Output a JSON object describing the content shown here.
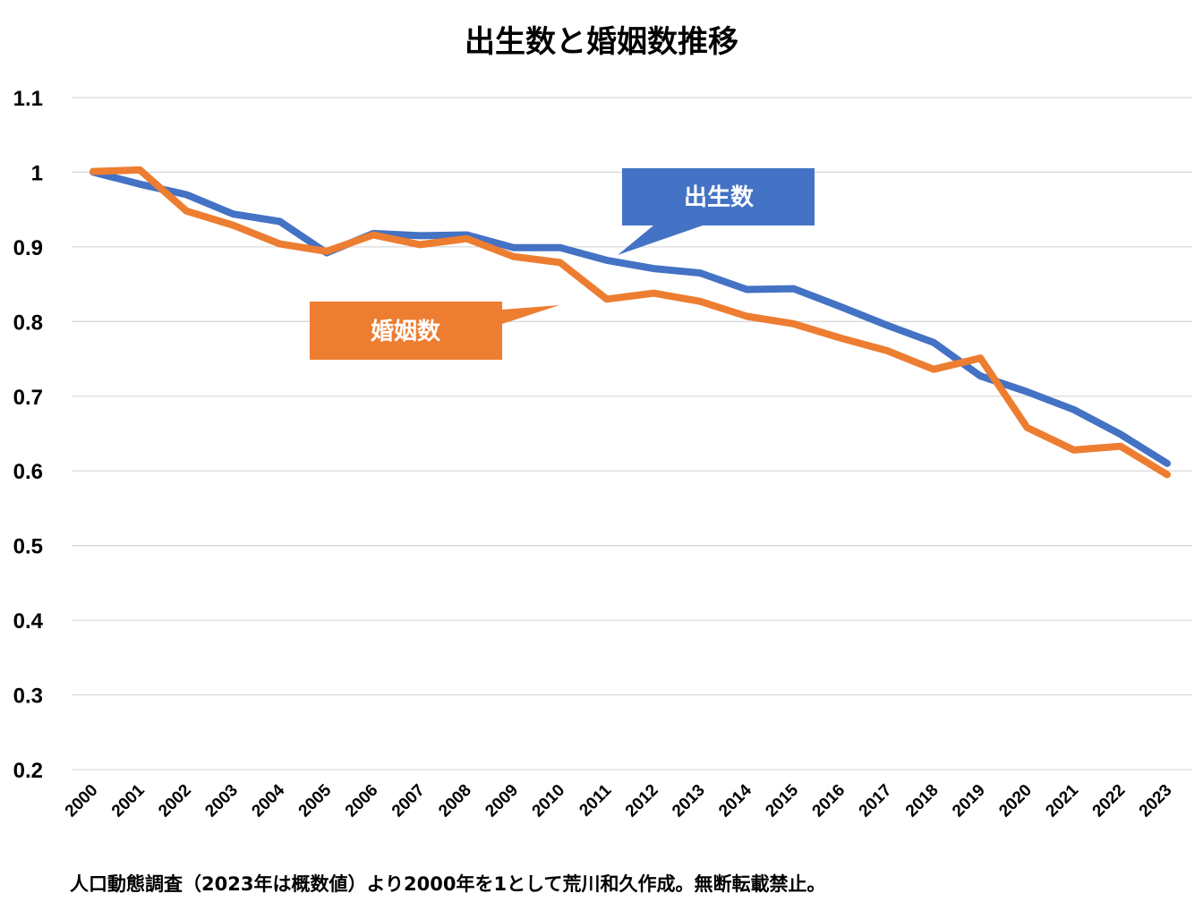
{
  "chart_data": {
    "type": "line",
    "title": "出生数と婚姻数推移",
    "xlabel": "",
    "ylabel": "",
    "ylim": [
      0.2,
      1.1
    ],
    "yticks": [
      "1.1",
      "1",
      "0.9",
      "0.8",
      "0.7",
      "0.6",
      "0.5",
      "0.4",
      "0.3",
      "0.2"
    ],
    "ytick_values": [
      1.1,
      1.0,
      0.9,
      0.8,
      0.7,
      0.6,
      0.5,
      0.4,
      0.3,
      0.2
    ],
    "grid": true,
    "categories": [
      "2000",
      "2001",
      "2002",
      "2003",
      "2004",
      "2005",
      "2006",
      "2007",
      "2008",
      "2009",
      "2010",
      "2011",
      "2012",
      "2013",
      "2014",
      "2015",
      "2016",
      "2017",
      "2018",
      "2019",
      "2020",
      "2021",
      "2022",
      "2023"
    ],
    "series": [
      {
        "name": "出生数",
        "color": "#4472C4",
        "values": [
          1.0,
          0.984,
          0.97,
          0.944,
          0.934,
          0.892,
          0.918,
          0.915,
          0.916,
          0.899,
          0.899,
          0.882,
          0.871,
          0.865,
          0.843,
          0.844,
          0.82,
          0.795,
          0.772,
          0.727,
          0.706,
          0.682,
          0.649,
          0.61
        ]
      },
      {
        "name": "婚姻数",
        "color": "#ED7D31",
        "values": [
          1.001,
          1.003,
          0.948,
          0.929,
          0.904,
          0.894,
          0.916,
          0.903,
          0.911,
          0.887,
          0.879,
          0.83,
          0.838,
          0.827,
          0.807,
          0.797,
          0.778,
          0.761,
          0.736,
          0.751,
          0.658,
          0.628,
          0.633,
          0.595
        ]
      }
    ],
    "annotations": [
      {
        "text": "出生数",
        "series": "出生数",
        "color": "#4472C4"
      },
      {
        "text": "婚姻数",
        "series": "婚姻数",
        "color": "#ED7D31"
      }
    ],
    "footnote": "人口動態調査（2023年は概数値）より2000年を1として荒川和久作成。無断転載禁止。"
  }
}
